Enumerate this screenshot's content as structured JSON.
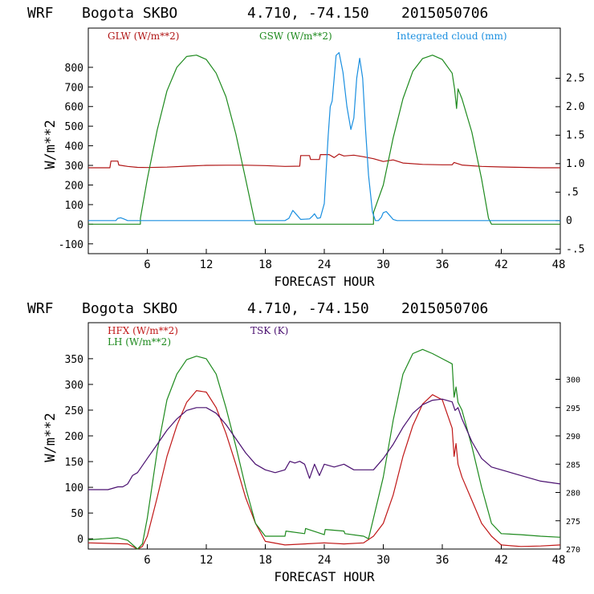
{
  "chart_data": [
    {
      "type": "line",
      "title": {
        "model": "WRF",
        "station": "Bogota SKBO",
        "coords": "4.710, -74.150",
        "init": "2015050706"
      },
      "xlabel": "FORECAST HOUR",
      "ylabel": "W/m**2",
      "xlim": [
        0,
        48
      ],
      "ylim": [
        -150,
        1000
      ],
      "xticks": [
        "6",
        "12",
        "18",
        "24",
        "30",
        "36",
        "42",
        "48"
      ],
      "yticks": [
        "-100",
        "0",
        "100",
        "200",
        "300",
        "400",
        "500",
        "600",
        "700",
        "800"
      ],
      "y2lim": [
        -0.58,
        3.38
      ],
      "y2ticks": [
        "-.5",
        "0",
        ".5",
        "1.0",
        "1.5",
        "2.0",
        "2.5"
      ],
      "legend": [
        {
          "name": "GLW (W/m**2)",
          "color": "#b01515"
        },
        {
          "name": "GSW (W/m**2)",
          "color": "#1e8a1e"
        },
        {
          "name": "Integrated cloud (mm)",
          "color": "#1a8fe0"
        }
      ],
      "series": [
        {
          "name": "GLW",
          "axis": "left",
          "color": "#b01515",
          "x": [
            0,
            2.2,
            2.3,
            3,
            3.1,
            4,
            5,
            6,
            8,
            10,
            12,
            14,
            16,
            18,
            20,
            21.5,
            21.6,
            22.5,
            22.6,
            23.5,
            23.6,
            24.5,
            25,
            25.5,
            26,
            27,
            28,
            29,
            30,
            31,
            32,
            34,
            36,
            37,
            37.2,
            38,
            40,
            42,
            44,
            46,
            48
          ],
          "y": [
            288,
            288,
            322,
            322,
            302,
            295,
            290,
            289,
            291,
            296,
            300,
            301,
            301,
            299,
            295,
            296,
            350,
            350,
            330,
            330,
            355,
            355,
            340,
            358,
            348,
            352,
            344,
            334,
            320,
            328,
            312,
            305,
            303,
            303,
            315,
            302,
            295,
            292,
            290,
            288,
            288
          ]
        },
        {
          "name": "GSW",
          "axis": "left",
          "color": "#1e8a1e",
          "x": [
            0,
            5.3,
            5.3,
            6,
            7,
            8,
            9,
            10,
            11,
            12,
            13,
            14,
            15,
            16,
            16.9,
            17,
            29,
            29,
            30,
            31,
            32,
            33,
            34,
            35,
            36,
            37,
            37.25,
            37.45,
            37.6,
            38,
            39,
            40,
            40.7,
            41,
            48
          ],
          "y": [
            0,
            0,
            30,
            230,
            480,
            680,
            800,
            855,
            862,
            840,
            770,
            650,
            460,
            230,
            20,
            0,
            0,
            60,
            200,
            440,
            640,
            780,
            845,
            862,
            840,
            770,
            690,
            590,
            690,
            640,
            470,
            230,
            30,
            0,
            0
          ]
        },
        {
          "name": "Integrated cloud (mm)",
          "axis": "right",
          "color": "#1a8fe0",
          "x": [
            0,
            2.8,
            3,
            3.3,
            3.6,
            4,
            20,
            20.4,
            20.8,
            21.2,
            21.6,
            22.5,
            22.8,
            23,
            23.3,
            23.6,
            24,
            24.2,
            24.4,
            24.6,
            24.8,
            25,
            25.2,
            25.5,
            25.9,
            26.3,
            26.7,
            27,
            27.3,
            27.6,
            27.9,
            28.2,
            28.5,
            28.9,
            29.2,
            29.5,
            29.8,
            30,
            30.3,
            30.6,
            31,
            31.4,
            48
          ],
          "y": [
            0,
            0,
            0.04,
            0.05,
            0.03,
            0,
            0,
            0.04,
            0.18,
            0.1,
            0.02,
            0.03,
            0.08,
            0.12,
            0.04,
            0.05,
            0.3,
            0.9,
            1.5,
            2.0,
            2.1,
            2.5,
            2.9,
            2.95,
            2.6,
            2.0,
            1.6,
            1.8,
            2.5,
            2.85,
            2.5,
            1.6,
            0.8,
            0.15,
            0,
            0,
            0.06,
            0.14,
            0.16,
            0.1,
            0.02,
            0,
            0
          ]
        }
      ]
    },
    {
      "type": "line",
      "title": {
        "model": "WRF",
        "station": "Bogota SKBO",
        "coords": "4.710, -74.150",
        "init": "2015050706"
      },
      "xlabel": "FORECAST HOUR",
      "ylabel": "W/m**2",
      "xlim": [
        0,
        48
      ],
      "ylim": [
        -20,
        420
      ],
      "xticks": [
        "6",
        "12",
        "18",
        "24",
        "30",
        "36",
        "42",
        "48"
      ],
      "yticks": [
        "0",
        "50",
        "100",
        "150",
        "200",
        "250",
        "300",
        "350"
      ],
      "y2lim": [
        270,
        310
      ],
      "y2ticks": [
        "270",
        "275",
        "280",
        "285",
        "290",
        "295",
        "300"
      ],
      "legend": [
        {
          "name": "HFX (W/m**2)",
          "color": "#c01818"
        },
        {
          "name": "LH  (W/m**2)",
          "color": "#1e8a1e"
        },
        {
          "name": "TSK (K)",
          "color": "#4a1070"
        }
      ],
      "series": [
        {
          "name": "HFX",
          "axis": "left",
          "color": "#c01818",
          "x": [
            0,
            4,
            5,
            5.5,
            6,
            7,
            8,
            9,
            10,
            11,
            12,
            13,
            14,
            15,
            16,
            17,
            18,
            20,
            22,
            24,
            26,
            28,
            29,
            30,
            31,
            32,
            33,
            34,
            35,
            36,
            37,
            37.2,
            37.4,
            37.6,
            38,
            39,
            40,
            41,
            42,
            44,
            46,
            48
          ],
          "y": [
            -8,
            -10,
            -20,
            -15,
            5,
            80,
            160,
            220,
            265,
            288,
            285,
            255,
            205,
            145,
            80,
            30,
            -5,
            -12,
            -10,
            -8,
            -10,
            -8,
            5,
            30,
            85,
            160,
            220,
            262,
            280,
            270,
            215,
            160,
            185,
            145,
            120,
            75,
            30,
            5,
            -12,
            -15,
            -14,
            -12
          ]
        },
        {
          "name": "LH",
          "axis": "left",
          "color": "#1e8a1e",
          "x": [
            0,
            3,
            4,
            5,
            5.5,
            6,
            7,
            8,
            9,
            10,
            11,
            12,
            13,
            14,
            15,
            16,
            17,
            18,
            20,
            20.1,
            22,
            22.1,
            24,
            24.1,
            26,
            26.1,
            28,
            28.5,
            29,
            30,
            31,
            32,
            33,
            34,
            35,
            36,
            37,
            37.2,
            37.4,
            37.6,
            38,
            39,
            40,
            41,
            42,
            44,
            46,
            48
          ],
          "y": [
            -2,
            2,
            -3,
            -20,
            -10,
            40,
            170,
            270,
            320,
            348,
            355,
            350,
            320,
            255,
            180,
            100,
            30,
            5,
            5,
            15,
            10,
            20,
            8,
            18,
            15,
            10,
            5,
            0,
            40,
            120,
            230,
            320,
            360,
            368,
            360,
            350,
            340,
            275,
            295,
            265,
            250,
            180,
            100,
            30,
            10,
            8,
            5,
            3
          ]
        },
        {
          "name": "TSK",
          "axis": "right",
          "color": "#4a1070",
          "x": [
            0,
            2,
            3,
            3.5,
            4,
            4.5,
            5,
            6,
            7,
            8,
            9,
            10,
            11,
            12,
            13,
            14,
            15,
            16,
            17,
            18,
            19,
            20,
            20.5,
            21,
            21.5,
            22,
            22.5,
            23,
            23.5,
            24,
            25,
            26,
            27,
            28,
            29,
            30,
            31,
            32,
            33,
            34,
            35,
            36,
            37,
            37.3,
            37.6,
            38,
            39,
            40,
            41,
            42,
            44,
            46,
            48
          ],
          "y": [
            280.5,
            280.5,
            281,
            281,
            281.5,
            283,
            283.5,
            286,
            288.5,
            291,
            293,
            294.5,
            295,
            295,
            294,
            292,
            289.5,
            287,
            285,
            284,
            283.5,
            284,
            285.5,
            285.2,
            285.5,
            285,
            282.5,
            285,
            283,
            285,
            284.5,
            285,
            284,
            284,
            284,
            286,
            288.5,
            291.5,
            294,
            295.5,
            296.3,
            296.5,
            296,
            294.5,
            295,
            293,
            289,
            286,
            284.5,
            284,
            283,
            282,
            281.5
          ]
        }
      ]
    }
  ]
}
